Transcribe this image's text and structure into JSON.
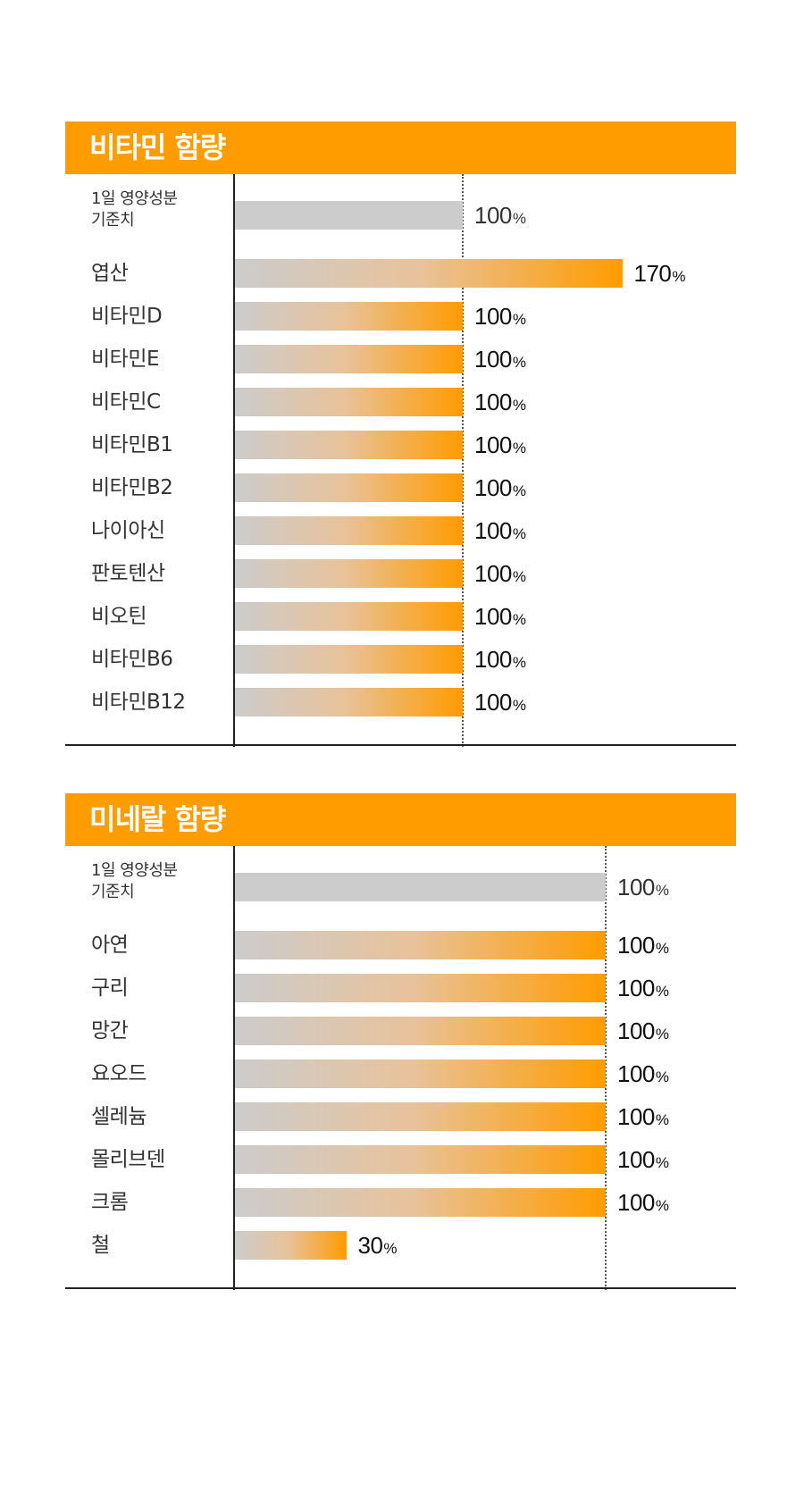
{
  "chart_data": [
    {
      "type": "bar",
      "orientation": "horizontal",
      "title": "비타민 함량",
      "reference": {
        "label": "1일 영양성분\n기준치",
        "value": 100
      },
      "categories": [
        "엽산",
        "비타민D",
        "비타민E",
        "비타민C",
        "비타민B1",
        "비타민B2",
        "나이아신",
        "판토텐산",
        "비오틴",
        "비타민B6",
        "비타민B12"
      ],
      "values": [
        170,
        100,
        100,
        100,
        100,
        100,
        100,
        100,
        100,
        100,
        100
      ],
      "unit": "%",
      "xlim": [
        0,
        200
      ]
    },
    {
      "type": "bar",
      "orientation": "horizontal",
      "title": "미네랄 함량",
      "reference": {
        "label": "1일 영양성분\n기준치",
        "value": 100
      },
      "categories": [
        "아연",
        "구리",
        "망간",
        "요오드",
        "셀레늄",
        "몰리브덴",
        "크롬",
        "철"
      ],
      "values": [
        100,
        100,
        100,
        100,
        100,
        100,
        100,
        30
      ],
      "unit": "%",
      "xlim": [
        0,
        120
      ]
    }
  ],
  "colors": {
    "accent": "#FF9C00",
    "reference_bar": "#CCCCCC"
  }
}
